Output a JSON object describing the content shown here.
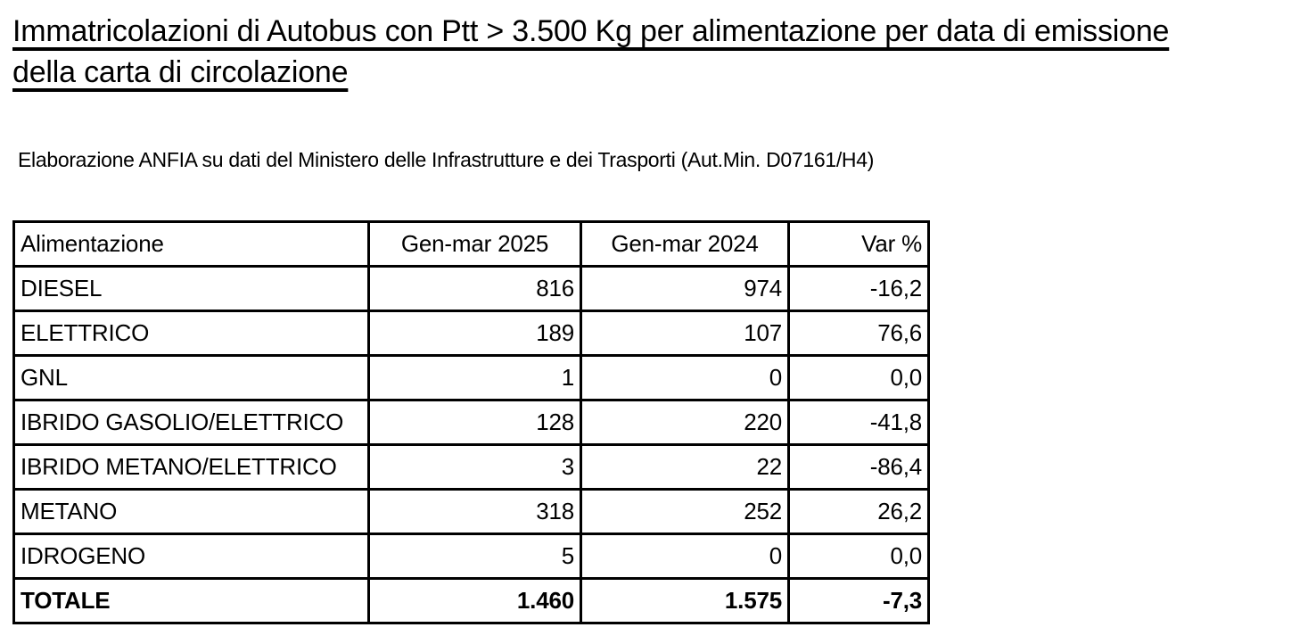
{
  "title_lines": [
    "Immatricolazioni di Autobus con Ptt > 3.500 Kg per alimentazione per data di emissione",
    "della carta di circolazione"
  ],
  "subtitle": "Elaborazione ANFIA su dati del Ministero delle Infrastrutture e dei Trasporti (Aut.Min. D07161/H4)",
  "table": {
    "headers": [
      "Alimentazione",
      "Gen-mar 2025",
      "Gen-mar 2024",
      "Var %"
    ],
    "rows": [
      {
        "label": "DIESEL",
        "y2025": "816",
        "y2024": "974",
        "var": "-16,2"
      },
      {
        "label": "ELETTRICO",
        "y2025": "189",
        "y2024": "107",
        "var": "76,6"
      },
      {
        "label": "GNL",
        "y2025": "1",
        "y2024": "0",
        "var": "0,0"
      },
      {
        "label": "IBRIDO GASOLIO/ELETTRICO",
        "y2025": "128",
        "y2024": "220",
        "var": "-41,8"
      },
      {
        "label": "IBRIDO METANO/ELETTRICO",
        "y2025": "3",
        "y2024": "22",
        "var": "-86,4"
      },
      {
        "label": "METANO",
        "y2025": "318",
        "y2024": "252",
        "var": "26,2"
      },
      {
        "label": "IDROGENO",
        "y2025": "5",
        "y2024": "0",
        "var": "0,0"
      }
    ],
    "total_row": {
      "label": "TOTALE",
      "y2025": "1.460",
      "y2024": "1.575",
      "var": "-7,3"
    }
  }
}
